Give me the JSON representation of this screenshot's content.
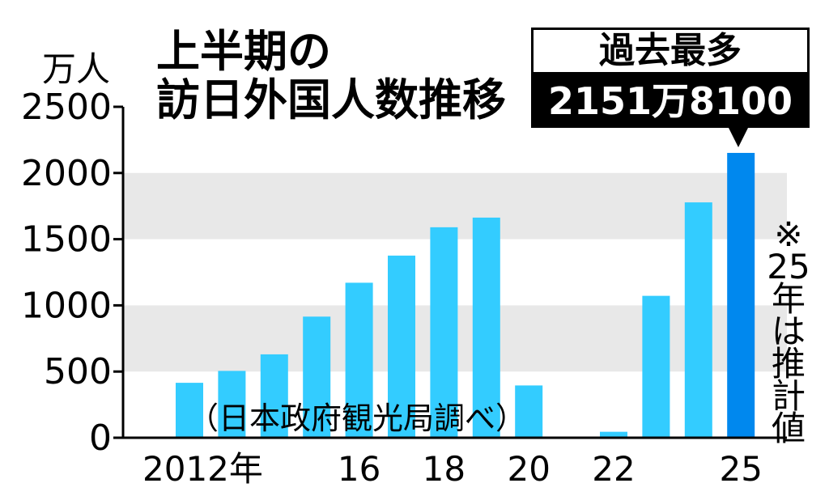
{
  "chart_data": {
    "type": "bar",
    "title_lines": [
      "上半期の",
      "訪日外国人数推移"
    ],
    "unit": "万人",
    "ylim": [
      0,
      2500
    ],
    "y_ticks": [
      0,
      500,
      1000,
      1500,
      2000,
      2500
    ],
    "y_tick_labels": [
      "0",
      "500",
      "1000",
      "1500",
      "2000",
      "2500"
    ],
    "categories": [
      "2012",
      "2013",
      "2014",
      "2015",
      "2016",
      "2017",
      "2018",
      "2019",
      "2020",
      "2021",
      "2022",
      "2023",
      "2024",
      "2025"
    ],
    "x_tick_labels": [
      {
        "category": "2012",
        "label": "2012年"
      },
      {
        "category": "2016",
        "label": "16"
      },
      {
        "category": "2018",
        "label": "18"
      },
      {
        "category": "2020",
        "label": "20"
      },
      {
        "category": "2022",
        "label": "22"
      },
      {
        "category": "2025",
        "label": "25"
      }
    ],
    "values": [
      415,
      505,
      630,
      915,
      1171,
      1376,
      1590,
      1663,
      395,
      5,
      45,
      1072,
      1778,
      2151.81
    ],
    "highlight_category": "2025",
    "bar_color": "#33ccff",
    "highlight_color": "#0088ee",
    "band_color": "#e8e8e8",
    "callout": {
      "top": "過去最多",
      "bottom": "2151万8100人"
    },
    "note": [
      "※",
      "25",
      "年",
      "は",
      "推",
      "計",
      "値"
    ],
    "source": "（日本政府観光局調べ）"
  }
}
